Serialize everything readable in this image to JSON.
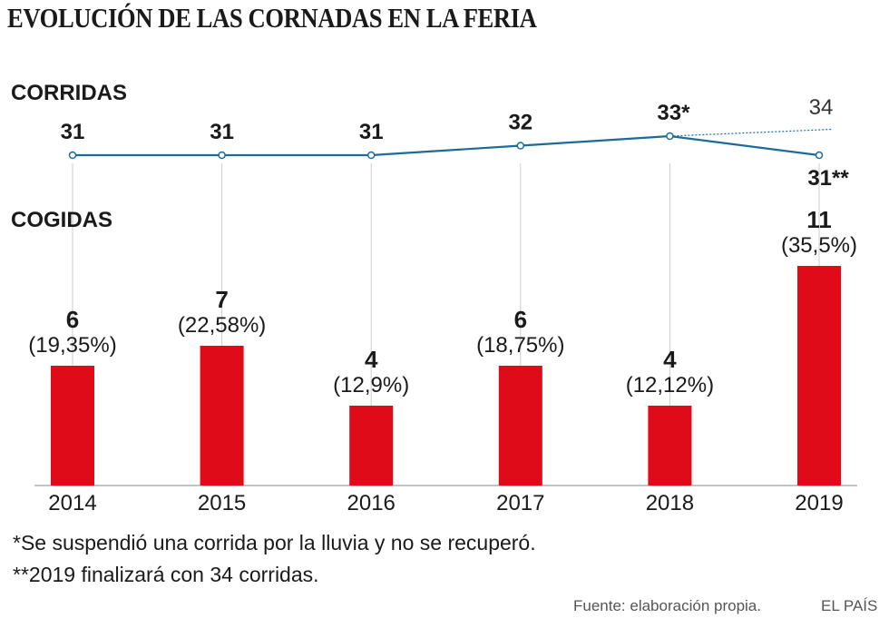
{
  "title": "EVOLUCIÓN DE LAS CORNADAS EN LA FERIA",
  "chart_data": {
    "type": "bar",
    "categories": [
      "2014",
      "2015",
      "2016",
      "2017",
      "2018",
      "2019"
    ],
    "series": [
      {
        "name": "CORRIDAS",
        "type": "line",
        "values": [
          31,
          31,
          31,
          32,
          33,
          31
        ],
        "labels": [
          "31",
          "31",
          "31",
          "32",
          "33*",
          "31**"
        ],
        "projection": {
          "from": "2018",
          "to": "2019",
          "value": 34,
          "label": "34"
        }
      },
      {
        "name": "COGIDAS",
        "type": "bar",
        "values": [
          6,
          7,
          4,
          6,
          4,
          11
        ],
        "labels": [
          "6",
          "7",
          "4",
          "6",
          "4",
          "11"
        ],
        "percent_labels": [
          "(19,35%)",
          "(22,58%)",
          "(12,9%)",
          "(18,75%)",
          "(12,12%)",
          "(35,5%)"
        ]
      }
    ],
    "ylim_bars": [
      0,
      11
    ],
    "colors": {
      "line": "#1c6b9a",
      "bar": "#e00b18",
      "grid": "#cccccc",
      "axis": "#888888"
    }
  },
  "footnotes": [
    "*Se suspendió una corrida por la lluvia y no se recuperó.",
    "**2019 finalizará con 34 corridas."
  ],
  "source": "Fuente: elaboración propia.",
  "brand": "EL PAÍS"
}
